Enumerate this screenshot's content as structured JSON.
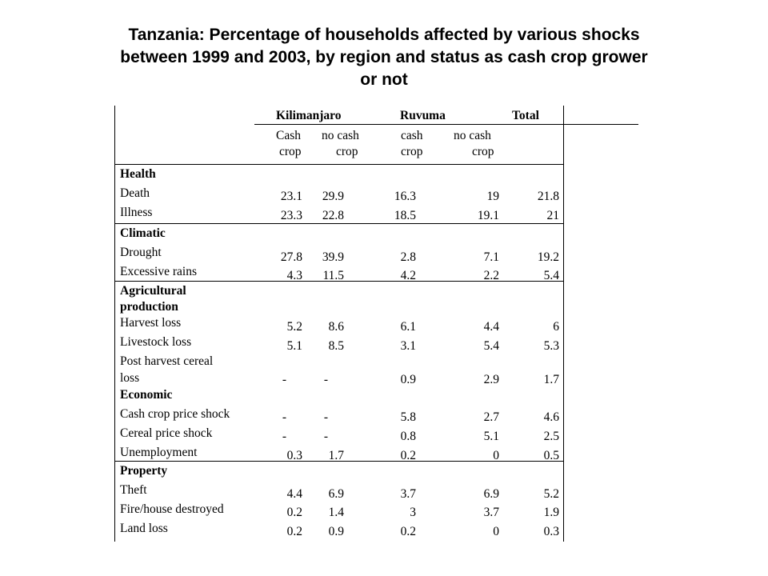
{
  "title": {
    "line1": "Tanzania: Percentage of households affected by various shocks",
    "line2": "between 1999 and 2003, by region and status as cash crop grower",
    "line3": "or not"
  },
  "table": {
    "region_headers": [
      "Kilimanjaro",
      "Ruvuma",
      "Total"
    ],
    "col_headers": {
      "c1_l1": "Cash",
      "c1_l2": "crop",
      "c2_l1": "no cash",
      "c2_l2": "crop",
      "c3_l1": "cash",
      "c3_l2": "crop",
      "c4_l1": "no cash",
      "c4_l2": "crop"
    },
    "categories": {
      "health": "Health",
      "climatic": "Climatic",
      "agri_l1": "Agricultural",
      "agri_l2": "production",
      "economic": "Economic",
      "property": "Property"
    },
    "rows": [
      {
        "label": "Death",
        "values": [
          "23.1",
          "29.9",
          "16.3",
          "19",
          "21.8"
        ]
      },
      {
        "label": "Illness",
        "values": [
          "23.3",
          "22.8",
          "18.5",
          "19.1",
          "21"
        ]
      },
      {
        "label": "Drought",
        "values": [
          "27.8",
          "39.9",
          "2.8",
          "7.1",
          "19.2"
        ]
      },
      {
        "label": "Excessive rains",
        "values": [
          "4.3",
          "11.5",
          "4.2",
          "2.2",
          "5.4"
        ]
      },
      {
        "label": "Harvest loss",
        "values": [
          "5.2",
          "8.6",
          "6.1",
          "4.4",
          "6"
        ]
      },
      {
        "label": "Livestock loss",
        "values": [
          "5.1",
          "8.5",
          "3.1",
          "5.4",
          "5.3"
        ]
      },
      {
        "label": "Post harvest cereal",
        "label2": "loss",
        "values": [
          "-",
          "-",
          "0.9",
          "2.9",
          "1.7"
        ]
      },
      {
        "label": "Cash crop price shock",
        "values": [
          "-",
          "-",
          "5.8",
          "2.7",
          "4.6"
        ]
      },
      {
        "label": "Cereal price shock",
        "values": [
          "-",
          "-",
          "0.8",
          "5.1",
          "2.5"
        ]
      },
      {
        "label": "Unemployment",
        "values": [
          "0.3",
          "1.7",
          "0.2",
          "0",
          "0.5"
        ]
      },
      {
        "label": "Theft",
        "values": [
          "4.4",
          "6.9",
          "3.7",
          "6.9",
          "5.2"
        ]
      },
      {
        "label": "Fire/house destroyed",
        "values": [
          "0.2",
          "1.4",
          "3",
          "3.7",
          "1.9"
        ]
      },
      {
        "label": "Land loss",
        "values": [
          "0.2",
          "0.9",
          "0.2",
          "0",
          "0.3"
        ]
      }
    ]
  }
}
